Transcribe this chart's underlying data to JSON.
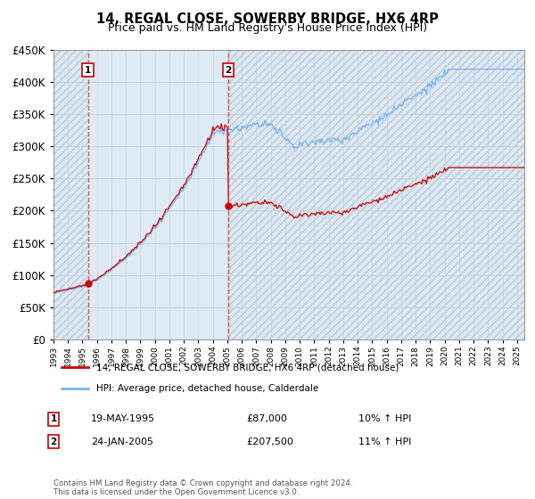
{
  "title": "14, REGAL CLOSE, SOWERBY BRIDGE, HX6 4RP",
  "subtitle": "Price paid vs. HM Land Registry's House Price Index (HPI)",
  "ylim": [
    0,
    450000
  ],
  "yticks": [
    0,
    50000,
    100000,
    150000,
    200000,
    250000,
    300000,
    350000,
    400000,
    450000
  ],
  "ytick_labels": [
    "£0",
    "£50K",
    "£100K",
    "£150K",
    "£200K",
    "£250K",
    "£300K",
    "£350K",
    "£400K",
    "£450K"
  ],
  "legend_entry1": "14, REGAL CLOSE, SOWERBY BRIDGE, HX6 4RP (detached house)",
  "legend_entry2": "HPI: Average price, detached house, Calderdale",
  "sale1_date": "19-MAY-1995",
  "sale1_price": 87000,
  "sale1_hpi_text": "10% ↑ HPI",
  "sale2_date": "24-JAN-2005",
  "sale2_price": 207500,
  "sale2_hpi_text": "11% ↑ HPI",
  "footnote": "Contains HM Land Registry data © Crown copyright and database right 2024.\nThis data is licensed under the Open Government Licence v3.0.",
  "line_color_red": "#cc0000",
  "line_color_blue": "#7ab4e8",
  "hatch_color": "#c8d8e8",
  "inner_bg_color": "#deeaf4",
  "grid_color": "#c8d4e0",
  "sale_marker_color": "#cc0000",
  "dashed_line_color": "#dd4444",
  "xlim_left": 1993.0,
  "xlim_right": 2025.5,
  "sale1_x": 1995.38,
  "sale2_x": 2005.07
}
